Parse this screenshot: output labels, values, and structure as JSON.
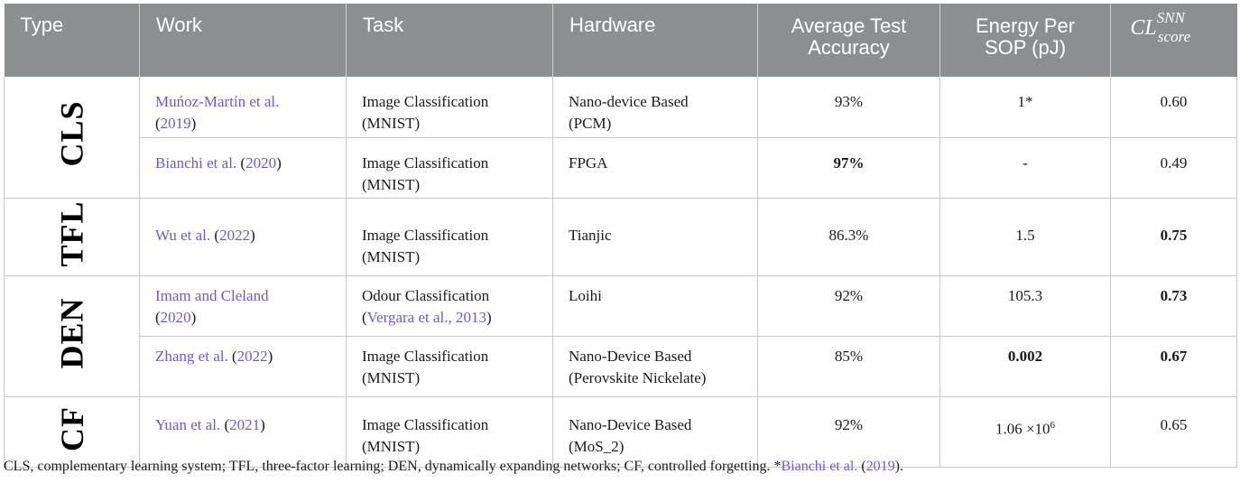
{
  "header": {
    "type": "Type",
    "work": "Work",
    "task": "Task",
    "hardware": "Hardware",
    "accuracy_1": "Average Test",
    "accuracy_2": "Accuracy",
    "energy_1": "Energy Per",
    "energy_2": "SOP (pJ)",
    "cl_base": "CL",
    "cl_sup": "SNN",
    "cl_sub": "score"
  },
  "groups": [
    {
      "type": "CLS"
    },
    {
      "type": "TFL"
    },
    {
      "type": "DEN"
    },
    {
      "type": "CF"
    }
  ],
  "rows": [
    {
      "author": "Muńoz-Martín et al.",
      "year_open": "(",
      "year": "2019",
      "year_close": ")",
      "task_1": "Image Classification",
      "task_2": "(MNIST)",
      "hw_1": "Nano-device Based",
      "hw_2": "(PCM)",
      "accuracy": "93%",
      "energy": "1*",
      "score": "0.60"
    },
    {
      "author": "Bianchi et al.",
      "year_open": " (",
      "year": "2020",
      "year_close": ")",
      "task_1": "Image Classification",
      "task_2": "(MNIST)",
      "hw_1": "FPGA",
      "hw_2": "",
      "accuracy": "97%",
      "energy": "-",
      "score": "0.49"
    },
    {
      "author": "Wu et al.",
      "year_open": " (",
      "year": "2022",
      "year_close": ")",
      "task_1": "Image Classification",
      "task_2": "(MNIST)",
      "hw_1": "Tianjic",
      "hw_2": "",
      "accuracy": "86.3%",
      "energy": "1.5",
      "score": "0.75"
    },
    {
      "author": "Imam and Cleland",
      "year_open": "(",
      "year": "2020",
      "year_close": ")",
      "task_1": "Odour Classification",
      "task_2_open": "(",
      "task_2_link": "Vergara et al., 2013",
      "task_2_close": ")",
      "hw_1": "Loihi",
      "hw_2": "",
      "accuracy": "92%",
      "energy": "105.3",
      "score": "0.73"
    },
    {
      "author": "Zhang et al.",
      "year_open": " (",
      "year": "2022",
      "year_close": ")",
      "task_1": "Image Classification",
      "task_2": "(MNIST)",
      "hw_1": "Nano-Device Based",
      "hw_2": "(Perovskite Nickelate)",
      "accuracy": "85%",
      "energy": "0.002",
      "score": "0.67"
    },
    {
      "author": "Yuan et al.",
      "year_open": " (",
      "year": "2021",
      "year_close": ")",
      "task_1": "Image Classification",
      "task_2": "(MNIST)",
      "hw_1": "Nano-Device Based",
      "hw_2": "(MoS_2)",
      "accuracy": "92%",
      "energy_base": "1.06 ×10",
      "energy_exp": "6",
      "score": "0.65"
    }
  ],
  "footnote": {
    "text": "CLS, complementary learning system; TFL, three-factor learning; DEN, dynamically expanding networks; CF, controlled forgetting. *",
    "link_author": "Bianchi et al.",
    "link_open": " (",
    "link_year": "2019",
    "link_close": ")."
  },
  "colors": {
    "header_bg": "#8c8f90",
    "header_text": "#ffffff",
    "link": "#6a5bcf",
    "border": "#c8c8c8"
  }
}
